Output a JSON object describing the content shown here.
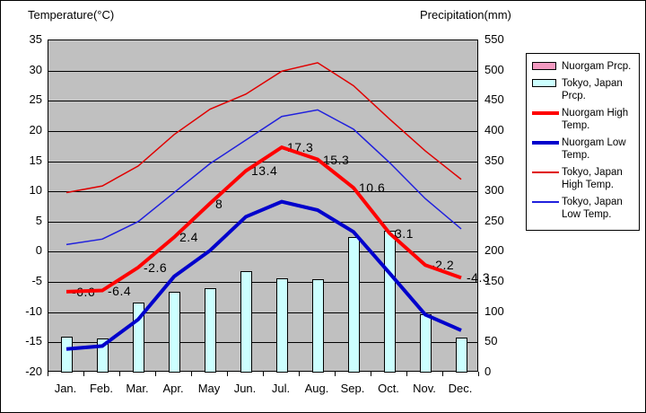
{
  "figure": {
    "temp_axis_title": "Temperature(°C)",
    "precip_axis_title": "Precipitation(mm)"
  },
  "chart_data": {
    "type": "combo-bar-line",
    "title": "",
    "categories": [
      "Jan.",
      "Feb.",
      "Mar.",
      "Apr.",
      "May",
      "Jun.",
      "Jul.",
      "Aug.",
      "Sep.",
      "Oct.",
      "Nov.",
      "Dec."
    ],
    "temp_axis": {
      "title": "Temperature(°C)",
      "side": "left",
      "min": -20,
      "max": 35,
      "step": 5,
      "tick_labels": [
        "35",
        "30",
        "25",
        "20",
        "15",
        "10",
        "5",
        "0",
        "-5",
        "-10",
        "-15",
        "-20"
      ]
    },
    "precip_axis": {
      "title": "Precipitation(mm)",
      "side": "right",
      "min": 0,
      "max": 550,
      "step": 50,
      "tick_labels": [
        "550",
        "500",
        "450",
        "400",
        "350",
        "300",
        "250",
        "200",
        "150",
        "100",
        "50",
        "0"
      ]
    },
    "grid": "horizontal-only",
    "plot_bg_color": "#c0c0c0",
    "legend_position": "right",
    "series": [
      {
        "name": "Nuorgam Prcp.",
        "type": "bar",
        "axis": "precip",
        "color": "#f49ac1",
        "values": null,
        "note": "legend entry only; no bars visible in plot"
      },
      {
        "name": "Tokyo, Japan Prcp.",
        "type": "bar",
        "axis": "precip",
        "color": "#ccffff",
        "values": [
          59.7,
          56.5,
          116.0,
          133.7,
          139.7,
          167.8,
          156.2,
          154.7,
          224.9,
          234.8,
          96.3,
          57.9
        ]
      },
      {
        "name": "Nuorgam High Temp.",
        "type": "line",
        "weight": "thick",
        "axis": "temp",
        "color": "#ff0000",
        "values": [
          -6.6,
          -6.4,
          -2.6,
          2.4,
          8,
          13.4,
          17.3,
          15.3,
          10.6,
          3.1,
          -2.2,
          -4.3
        ],
        "point_labels": [
          "-6.6",
          "-6.4",
          "-2.6",
          "2.4",
          "8",
          "13.4",
          "17.3",
          "15.3",
          "10.6",
          "3.1",
          "-2.2",
          "-4.3"
        ]
      },
      {
        "name": "Nuorgam Low Temp.",
        "type": "line",
        "weight": "thick",
        "axis": "temp",
        "color": "#0000cc",
        "values": [
          -16.1,
          -15.6,
          -11.2,
          -4.1,
          0.2,
          5.8,
          8.3,
          6.9,
          3.3,
          -3.5,
          -10.4,
          -13.0
        ]
      },
      {
        "name": "Tokyo, Japan High Temp.",
        "type": "line",
        "weight": "thin",
        "axis": "temp",
        "color": "#e00000",
        "values": [
          9.8,
          10.9,
          14.2,
          19.4,
          23.6,
          26.1,
          29.9,
          31.3,
          27.5,
          22.0,
          16.7,
          12.0
        ]
      },
      {
        "name": "Tokyo, Japan Low Temp.",
        "type": "line",
        "weight": "thin",
        "axis": "temp",
        "color": "#2020dd",
        "values": [
          1.2,
          2.1,
          5.0,
          9.8,
          14.6,
          18.5,
          22.4,
          23.5,
          20.3,
          14.8,
          8.8,
          3.8
        ]
      }
    ]
  },
  "legend": {
    "items": [
      {
        "label": "Nuorgam Prcp.",
        "swatch": "bar",
        "color": "#f49ac1"
      },
      {
        "label": "Tokyo, Japan Prcp.",
        "swatch": "bar",
        "color": "#ccffff"
      },
      {
        "label": "Nuorgam High Temp.",
        "swatch": "line-thick",
        "color": "#ff0000"
      },
      {
        "label": "Nuorgam Low Temp.",
        "swatch": "line-thick",
        "color": "#0000cc"
      },
      {
        "label": "Tokyo, Japan High Temp.",
        "swatch": "line-thin",
        "color": "#e00000"
      },
      {
        "label": "Tokyo, Japan Low Temp.",
        "swatch": "line-thin",
        "color": "#2020dd"
      }
    ]
  }
}
